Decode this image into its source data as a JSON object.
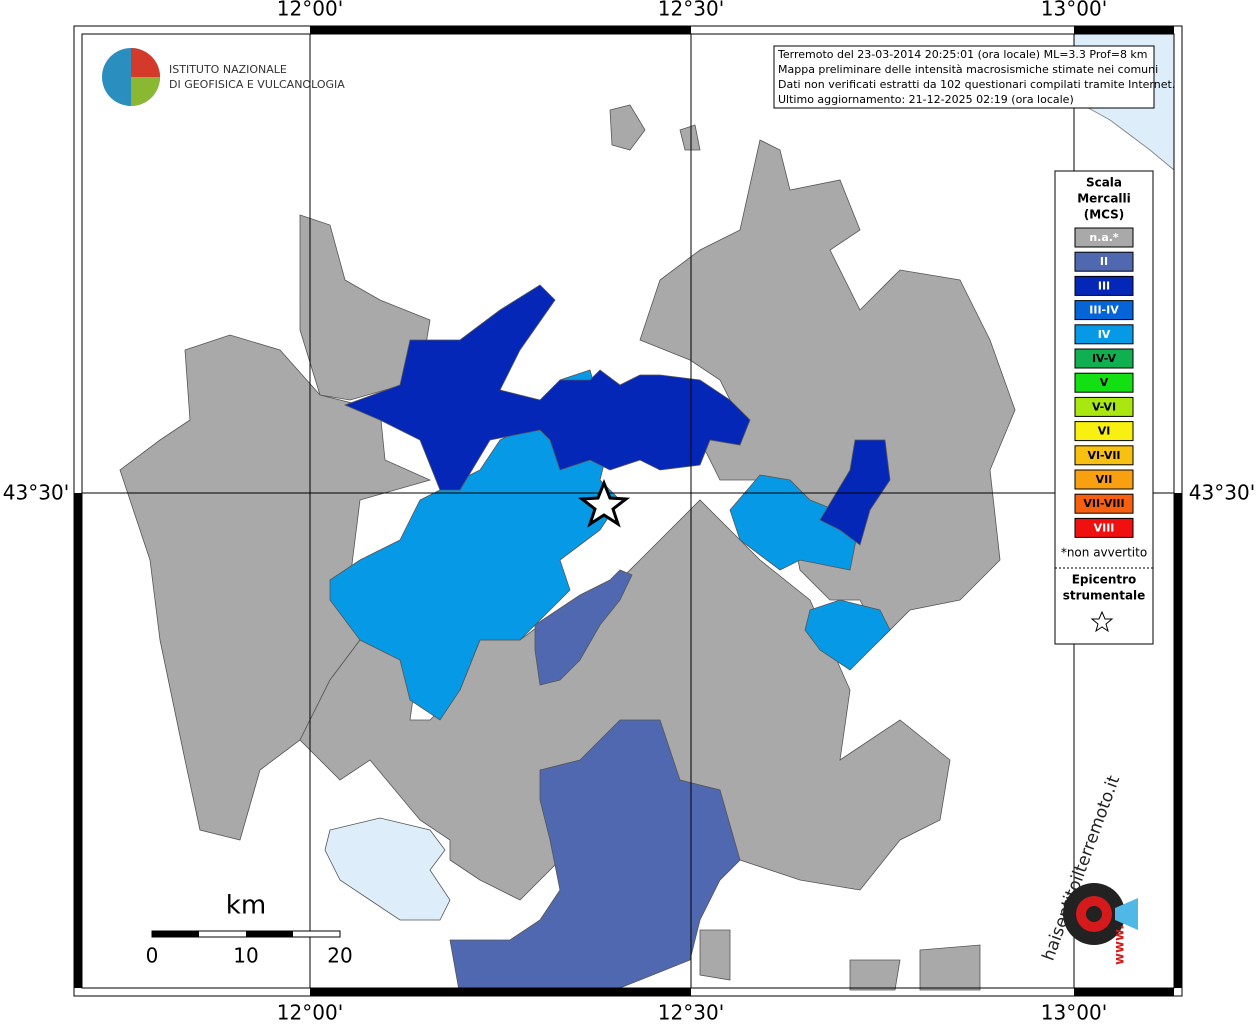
{
  "map": {
    "longitude_labels": [
      "12°00'",
      "12°30'",
      "13°00'"
    ],
    "latitude_labels": [
      "43°30'"
    ],
    "institute": [
      "ISTITUTO NAZIONALE",
      "DI GEOFISICA E VULCANOLOGIA"
    ],
    "info": [
      "Terremoto del 23-03-2014 20:25:01 (ora locale) ML=3.3 Prof=8 km",
      "Mappa preliminare delle intensità macrosismiche stimate nei comuni",
      "Dati non verificati estratti da 102 questionari compilati tramite Internet.",
      "Ultimo aggiornamento: 21-12-2025 02:19 (ora locale)"
    ],
    "legend": {
      "title": [
        "Scala",
        "Mercalli",
        "(MCS)"
      ],
      "items": [
        {
          "label": "n.a.*",
          "color": "#a9a9a9"
        },
        {
          "label": "II",
          "color": "#5068b0"
        },
        {
          "label": "III",
          "color": "#0527b8"
        },
        {
          "label": "III-IV",
          "color": "#0565d8"
        },
        {
          "label": "IV",
          "color": "#069ae6"
        },
        {
          "label": "IV-V",
          "color": "#10b050"
        },
        {
          "label": "V",
          "color": "#12e012"
        },
        {
          "label": "V-VI",
          "color": "#a8e810"
        },
        {
          "label": "VI",
          "color": "#f8f010"
        },
        {
          "label": "VI-VII",
          "color": "#f8c010"
        },
        {
          "label": "VII",
          "color": "#f8a010"
        },
        {
          "label": "VII-VIII",
          "color": "#f86010"
        },
        {
          "label": "VIII",
          "color": "#f01010"
        }
      ],
      "note": "*non avvertito",
      "epicenter": [
        "Epicentro",
        "strumentale"
      ]
    },
    "scale": {
      "unit": "km",
      "labels": [
        "0",
        "10",
        "20"
      ]
    },
    "site": [
      "haisentitoilterremoto.it",
      "www."
    ]
  }
}
